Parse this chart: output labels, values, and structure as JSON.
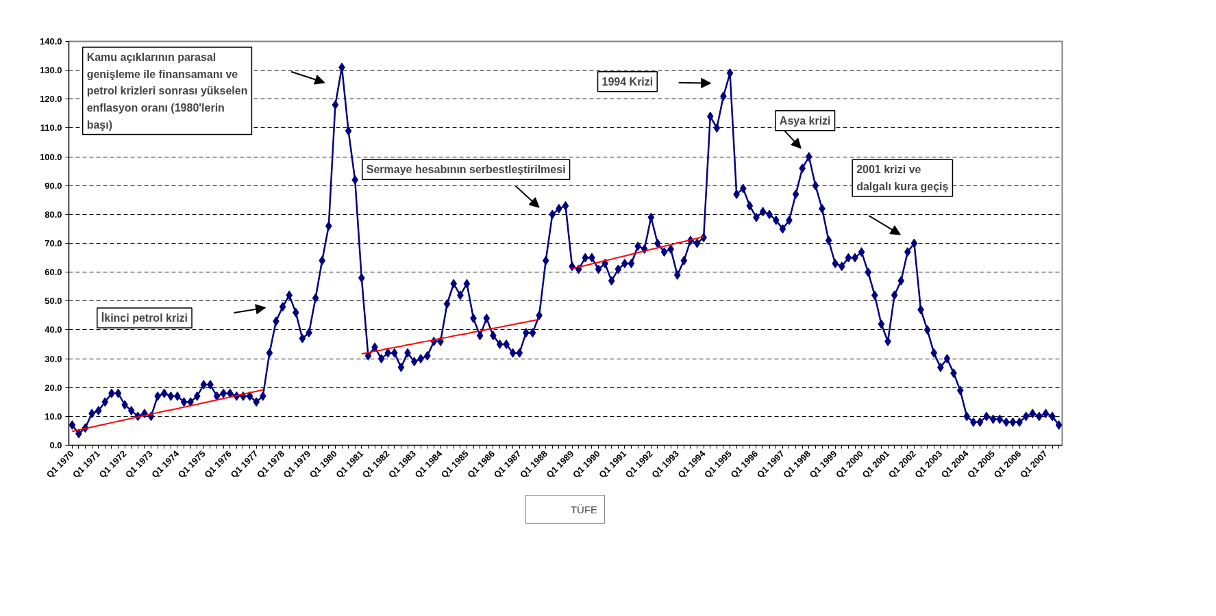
{
  "chart_data": {
    "type": "line",
    "categories": [
      "Q1 1970",
      null,
      null,
      null,
      "Q1 1971",
      null,
      null,
      null,
      "Q1 1972",
      null,
      null,
      null,
      "Q1 1973",
      null,
      null,
      null,
      "Q1 1974",
      null,
      null,
      null,
      "Q1 1975",
      null,
      null,
      null,
      "Q1 1976",
      null,
      null,
      null,
      "Q1 1977",
      null,
      null,
      null,
      "Q1 1978",
      null,
      null,
      null,
      "Q1 1979",
      null,
      null,
      null,
      "Q1 1980",
      null,
      null,
      null,
      "Q1 1981",
      null,
      null,
      null,
      "Q1 1982",
      null,
      null,
      null,
      "Q1 1983",
      null,
      null,
      null,
      "Q1 1984",
      null,
      null,
      null,
      "Q1 1985",
      null,
      null,
      null,
      "Q1 1986",
      null,
      null,
      null,
      "Q1 1987",
      null,
      null,
      null,
      "Q1 1988",
      null,
      null,
      null,
      "Q1 1989",
      null,
      null,
      null,
      "Q1 1990",
      null,
      null,
      null,
      "Q1 1991",
      null,
      null,
      null,
      "Q1 1992",
      null,
      null,
      null,
      "Q1 1993",
      null,
      null,
      null,
      "Q1 1994",
      null,
      null,
      null,
      "Q1 1995",
      null,
      null,
      null,
      "Q1 1996",
      null,
      null,
      null,
      "Q1 1997",
      null,
      null,
      null,
      "Q1 1998",
      null,
      null,
      null,
      "Q1 1999",
      null,
      null,
      null,
      "Q1 2000",
      null,
      null,
      null,
      "Q1 2001",
      null,
      null,
      null,
      "Q1 2002",
      null,
      null,
      null,
      "Q1 2003",
      null,
      null,
      null,
      "Q1 2004",
      null,
      null,
      null,
      "Q1 2005",
      null,
      null,
      null,
      "Q1 2006",
      null,
      null,
      null,
      "Q1 2007",
      null,
      null
    ],
    "ylim": [
      0,
      140
    ],
    "yticks": [
      {
        "value": 0,
        "label": "0.0"
      },
      {
        "value": 10,
        "label": "10.0"
      },
      {
        "value": 20,
        "label": "20.0"
      },
      {
        "value": 30,
        "label": "30.0"
      },
      {
        "value": 40,
        "label": "40.0"
      },
      {
        "value": 50,
        "label": "50.0"
      },
      {
        "value": 60,
        "label": "60.0"
      },
      {
        "value": 70,
        "label": "70.0"
      },
      {
        "value": 80,
        "label": "80.0"
      },
      {
        "value": 90,
        "label": "90.0"
      },
      {
        "value": 100,
        "label": "100.0"
      },
      {
        "value": 110,
        "label": "110.0"
      },
      {
        "value": 120,
        "label": "120.0"
      },
      {
        "value": 130,
        "label": "130.0"
      },
      {
        "value": 140,
        "label": "140.0"
      }
    ],
    "grid": "y",
    "legend": "bottom",
    "marker": "diamond",
    "line_style": "solid",
    "series": [
      {
        "name": "TÜFE",
        "color": "#000080",
        "values": [
          7,
          4,
          6,
          11,
          12,
          15,
          18,
          18,
          14,
          12,
          10,
          11,
          10,
          17,
          18,
          17,
          17,
          15,
          15,
          17,
          21,
          21,
          17,
          18,
          18,
          17,
          17,
          17,
          15,
          17,
          32,
          43,
          48,
          52,
          46,
          37,
          39,
          51,
          64,
          76,
          118,
          131,
          109,
          92,
          58,
          31,
          34,
          30,
          32,
          32,
          27,
          32,
          29,
          30,
          31,
          36,
          36,
          49,
          56,
          52,
          56,
          44,
          38,
          44,
          38,
          35,
          35,
          32,
          32,
          39,
          39,
          45,
          64,
          80,
          82,
          83,
          62,
          61,
          65,
          65,
          61,
          63,
          57,
          61,
          63,
          63,
          69,
          68,
          79,
          70,
          67,
          68,
          59,
          64,
          71,
          70,
          72,
          114,
          110,
          121,
          129,
          87,
          89,
          83,
          79,
          81,
          80,
          78,
          75,
          78,
          87,
          96,
          100,
          90,
          82,
          71,
          63,
          62,
          65,
          65,
          67,
          60,
          52,
          42,
          36,
          52,
          57,
          67,
          70,
          47,
          40,
          32,
          27,
          30,
          25,
          19,
          10,
          8,
          8,
          10,
          9,
          9,
          8,
          8,
          8,
          10,
          11,
          10,
          11,
          10,
          7
        ]
      },
      {
        "type": "line",
        "color": "#ff0000",
        "marker": "none",
        "values": [
          4.8,
          5.3,
          5.8,
          6.3,
          6.8,
          7.3,
          7.8,
          8.3,
          8.8,
          9.3,
          9.8,
          10.3,
          10.8,
          11.3,
          11.8,
          12.2,
          12.7,
          13.2,
          13.7,
          14.2,
          14.7,
          15.2,
          15.7,
          16.2,
          16.7,
          17.2,
          17.7,
          18.2,
          18.7,
          19.2,
          null,
          null,
          null,
          null,
          null,
          null,
          null,
          null,
          null,
          null,
          null,
          null,
          null,
          null,
          31.7,
          32.1,
          32.6,
          33.0,
          33.5,
          33.9,
          34.3,
          34.8,
          35.2,
          35.7,
          36.1,
          36.5,
          37.0,
          37.4,
          37.9,
          38.3,
          38.7,
          39.2,
          39.6,
          40.1,
          40.5,
          40.9,
          41.4,
          41.8,
          42.3,
          42.7,
          43.2,
          43.6,
          null,
          null,
          null,
          null,
          61.2,
          61.8,
          62.3,
          62.9,
          63.4,
          64.0,
          64.5,
          65.1,
          65.6,
          66.2,
          66.8,
          67.3,
          67.9,
          68.4,
          69.0,
          69.5,
          70.1,
          70.6,
          71.2,
          71.7,
          72.3,
          null,
          null,
          null,
          null,
          null,
          null,
          null,
          null,
          null,
          null,
          null,
          null,
          null,
          null,
          null,
          null,
          null,
          null,
          null,
          null,
          null,
          null,
          null,
          null,
          null,
          null,
          null,
          null,
          null,
          null,
          null,
          null,
          null,
          null,
          null,
          null,
          null,
          null,
          null,
          null,
          null,
          null,
          null,
          null,
          null,
          null,
          null,
          null,
          null,
          null,
          null,
          null,
          null,
          null
        ]
      }
    ],
    "annotations": [
      "Kamu açıklarının parasal genişleme ile finansamanı ve petrol krizleri sonrası yükselen enflasyon oranı (1980'lerin başı)",
      "İkinci petrol krizi",
      "Sermaye hesabının serbestleştirilmesi",
      "1994 Krizi",
      "Asya krizi",
      "2001 krizi ve dalgalı kura geçiş"
    ]
  }
}
